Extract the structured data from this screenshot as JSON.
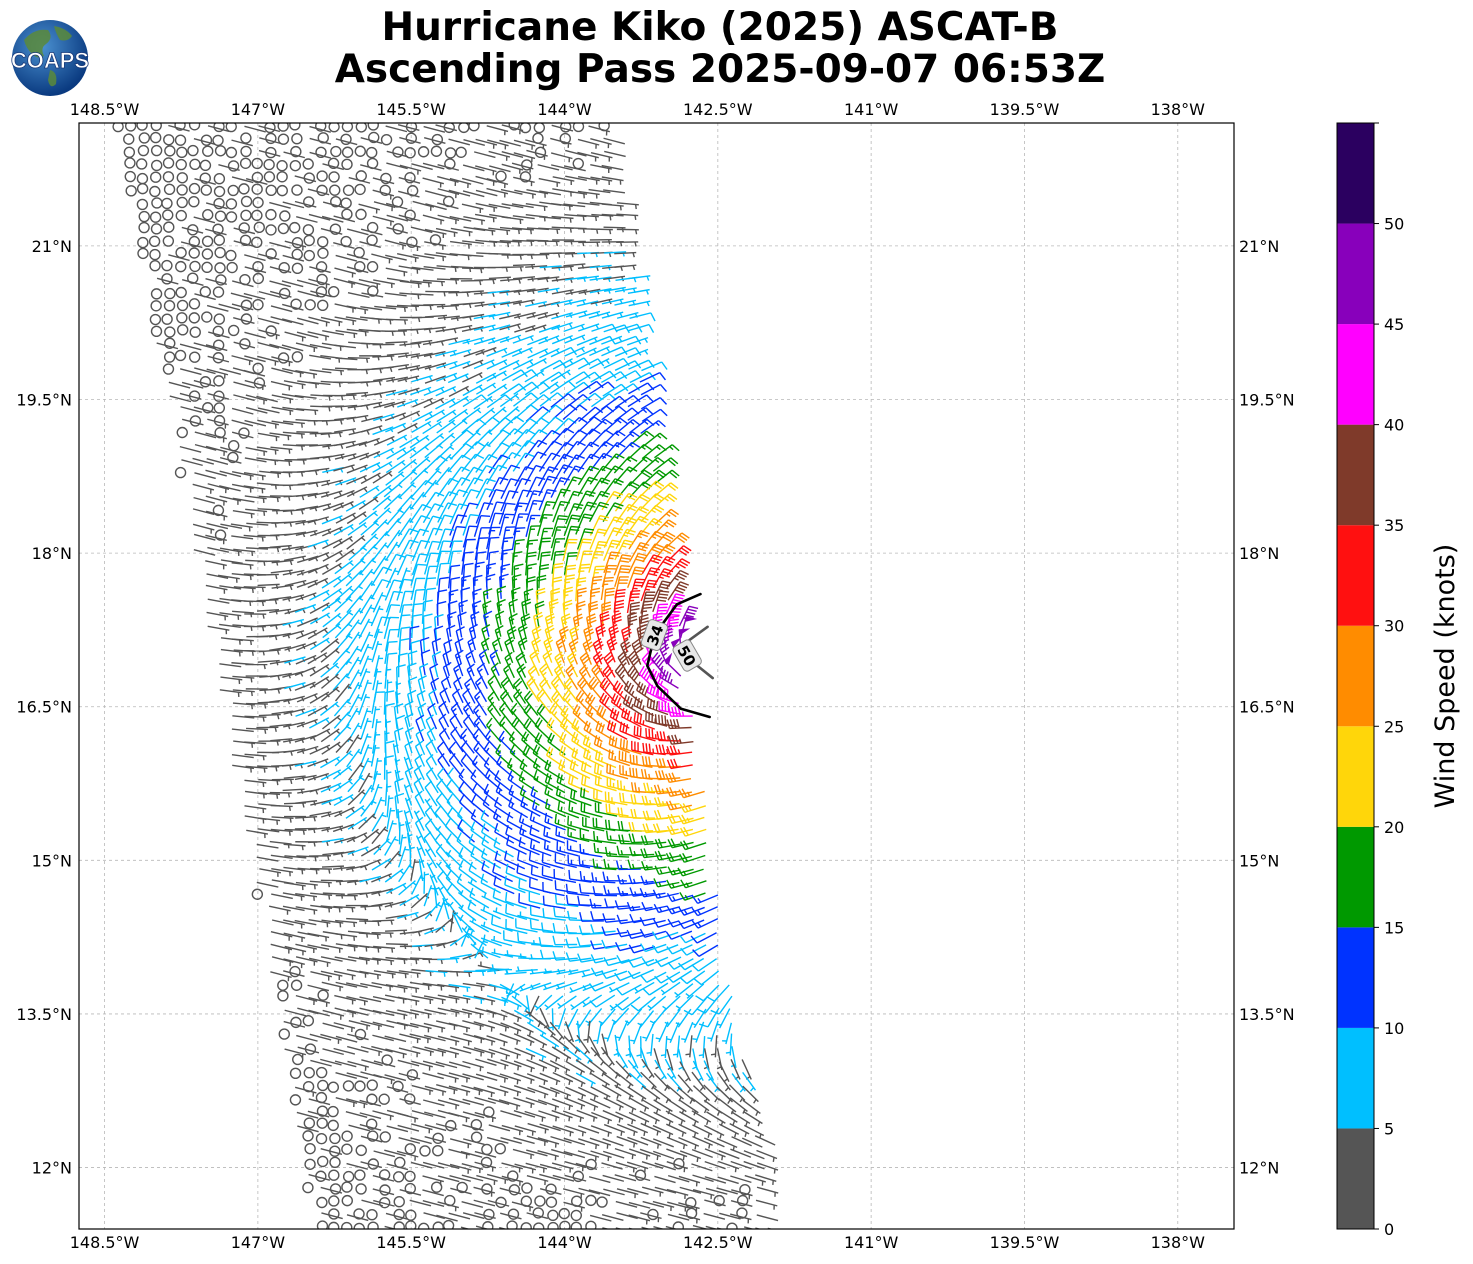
{
  "title_line1": "Hurricane Kiko (2025) ASCAT-B",
  "title_line2": "Ascending Pass 2025-09-07 06:53Z",
  "logo_text": "COAPS",
  "colorbar_label": "Wind Speed (knots)",
  "chart_data": {
    "type": "map",
    "lon_range": [
      -148.75,
      -137.45
    ],
    "lat_range": [
      11.4,
      22.2
    ],
    "lon_ticks": [
      "148.5°W",
      "147°W",
      "145.5°W",
      "144°W",
      "142.5°W",
      "141°W",
      "139.5°W",
      "138°W"
    ],
    "lon_tick_values": [
      -148.5,
      -147,
      -145.5,
      -144,
      -142.5,
      -141,
      -139.5,
      -138
    ],
    "lat_ticks": [
      "21°N",
      "19.5°N",
      "18°N",
      "16.5°N",
      "15°N",
      "13.5°N",
      "12°N"
    ],
    "lat_tick_values": [
      21,
      19.5,
      18,
      16.5,
      15,
      13.5,
      12
    ],
    "grid": true,
    "colorbar": {
      "min": 0,
      "max": 55,
      "bounds": [
        0,
        5,
        10,
        15,
        20,
        25,
        30,
        35,
        40,
        45,
        50,
        55
      ],
      "colors": [
        "#555555",
        "#00bfff",
        "#0033ff",
        "#009900",
        "#ffd60a",
        "#ff8c00",
        "#ff1010",
        "#7f3a2a",
        "#ff00ff",
        "#8800bb",
        "#2b0060"
      ],
      "tick_labels": [
        "0",
        "5",
        "10",
        "15",
        "20",
        "25",
        "30",
        "35",
        "40",
        "45",
        "50"
      ],
      "tick_values": [
        0,
        5,
        10,
        15,
        20,
        25,
        30,
        35,
        40,
        45,
        50
      ]
    },
    "swath": {
      "corners_lonlat": [
        [
          -148.38,
          22.2
        ],
        [
          -143.6,
          22.2
        ],
        [
          -141.99,
          11.4
        ],
        [
          -146.44,
          11.4
        ]
      ]
    },
    "storm_center": {
      "lon": -142.55,
      "lat": 16.95
    },
    "wind_field": {
      "description": "cyclonic vortex, speed decreasing with distance from center",
      "max_speed_kt": 53,
      "spacing_deg": 0.125
    },
    "contours": [
      {
        "label": "34",
        "points": [
          [
            -142.67,
            17.6
          ],
          [
            -142.9,
            17.5
          ],
          [
            -143.12,
            17.2
          ],
          [
            -143.19,
            16.9
          ],
          [
            -143.09,
            16.7
          ],
          [
            -142.86,
            16.48
          ],
          [
            -142.58,
            16.4
          ]
        ]
      },
      {
        "label": "50",
        "points": [
          [
            -142.6,
            17.28
          ],
          [
            -142.78,
            17.15
          ],
          [
            -142.8,
            17.0
          ],
          [
            -142.7,
            16.9
          ],
          [
            -142.55,
            16.78
          ]
        ]
      }
    ]
  }
}
